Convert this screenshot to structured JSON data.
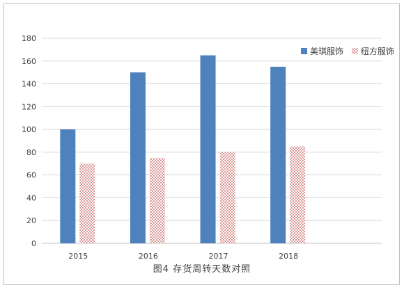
{
  "chart_data": {
    "type": "bar",
    "title": "",
    "xlabel": "",
    "ylabel": "",
    "categories": [
      "2015",
      "2016",
      "2017",
      "2018"
    ],
    "series": [
      {
        "name": "美琪服饰",
        "values": [
          100,
          150,
          165,
          155
        ],
        "color": "#4f81bd",
        "pattern": "solid"
      },
      {
        "name": "纽方服饰",
        "values": [
          70,
          75,
          80,
          85
        ],
        "color": "#c0504d",
        "pattern": "dotted"
      }
    ],
    "ylim": [
      0,
      180
    ],
    "yticks": [
      0,
      20,
      40,
      60,
      80,
      100,
      120,
      140,
      160,
      180
    ],
    "grid": true,
    "legend_position": "top-right"
  },
  "caption": "图4   存货周转天数对照"
}
